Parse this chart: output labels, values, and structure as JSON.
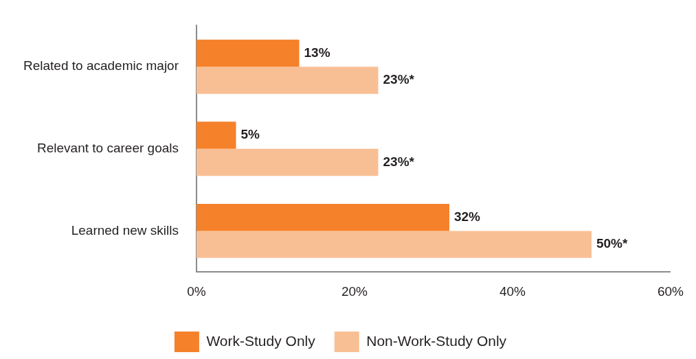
{
  "chart_data": {
    "type": "bar",
    "orientation": "horizontal",
    "categories": [
      "Related to academic major",
      "Relevant to career goals",
      "Learned new skills"
    ],
    "series": [
      {
        "name": "Work-Study Only",
        "color": "#f5812a",
        "values": [
          13,
          5,
          32
        ],
        "value_labels": [
          "13%",
          "5%",
          "32%"
        ]
      },
      {
        "name": "Non-Work-Study Only",
        "color": "#f9bf94",
        "values": [
          23,
          23,
          50
        ],
        "value_labels": [
          "23%*",
          "23%*",
          "50%*"
        ]
      }
    ],
    "xlim": [
      0,
      60
    ],
    "xticks": [
      {
        "value": 0,
        "label": "0%"
      },
      {
        "value": 20,
        "label": "20%"
      },
      {
        "value": 40,
        "label": "40%"
      },
      {
        "value": 60,
        "label": "60%"
      }
    ],
    "grid": false,
    "legend": "bottom"
  }
}
